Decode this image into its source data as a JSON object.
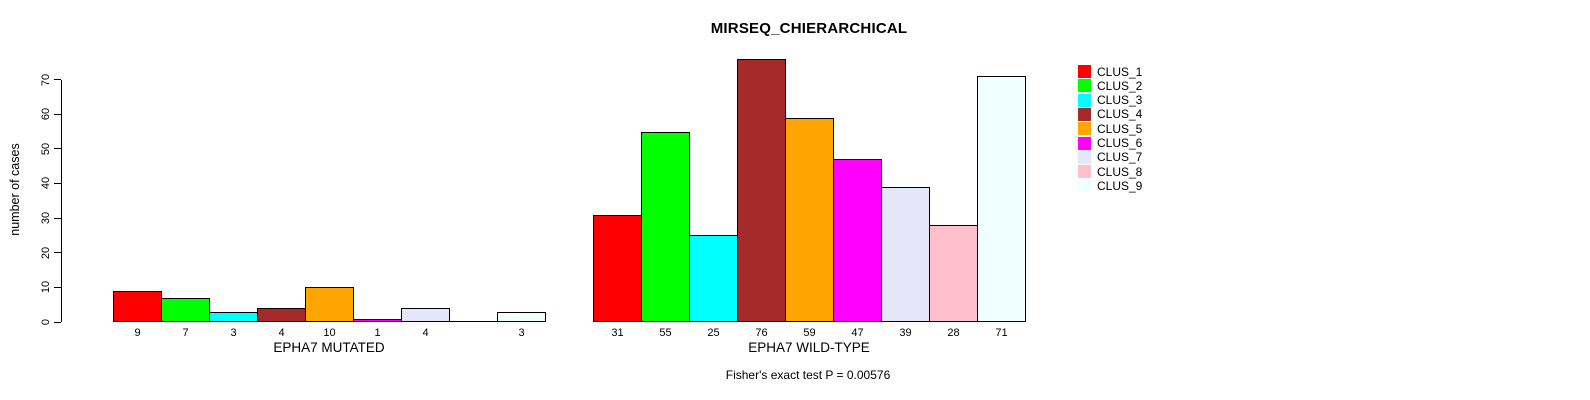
{
  "title": "MIRSEQ_CHIERARCHICAL",
  "ylabel": "number of cases",
  "subtitle": "Fisher's exact test P = 0.00576",
  "chart_data": {
    "type": "bar",
    "title": "MIRSEQ_CHIERARCHICAL",
    "ylabel": "number of cases",
    "xlabel": "",
    "ylim": [
      0,
      70
    ],
    "yticks": [
      0,
      10,
      20,
      30,
      40,
      50,
      60,
      70
    ],
    "grid": false,
    "legend_position": "right",
    "clusters": [
      "CLUS_1",
      "CLUS_2",
      "CLUS_3",
      "CLUS_4",
      "CLUS_5",
      "CLUS_6",
      "CLUS_7",
      "CLUS_8",
      "CLUS_9"
    ],
    "colors": [
      "#FF0000",
      "#00FF00",
      "#00FFFF",
      "#A52A2A",
      "#FFA500",
      "#FF00FF",
      "#E6E6FA",
      "#FFC0CB",
      "#F0FFFF"
    ],
    "groups": [
      {
        "label": "EPHA7 MUTATED",
        "values": [
          9,
          7,
          3,
          4,
          10,
          1,
          4,
          0,
          3
        ],
        "value_labels": [
          "9",
          "7",
          "3",
          "4",
          "10",
          "1",
          "4",
          "",
          "3"
        ]
      },
      {
        "label": "EPHA7 WILD-TYPE",
        "values": [
          31,
          55,
          25,
          76,
          59,
          47,
          39,
          28,
          71
        ],
        "value_labels": [
          "31",
          "55",
          "25",
          "76",
          "59",
          "47",
          "39",
          "28",
          "71"
        ]
      }
    ],
    "annotation": "Fisher's exact test P = 0.00576"
  }
}
